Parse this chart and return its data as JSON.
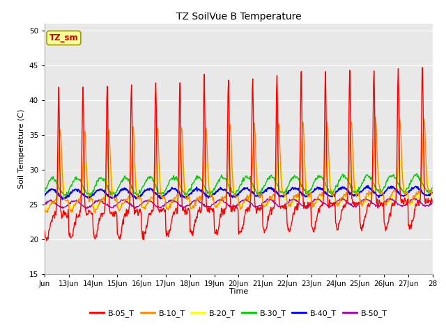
{
  "title": "TZ SoilVue B Temperature",
  "ylabel": "Soil Temperature (C)",
  "xlabel": "Time",
  "ylim": [
    15,
    51
  ],
  "yticks": [
    15,
    20,
    25,
    30,
    35,
    40,
    45,
    50
  ],
  "x_start": 12,
  "x_end": 28,
  "xtick_labels": [
    "Jun",
    "13Jun",
    "14Jun",
    "15Jun",
    "16Jun",
    "17Jun",
    "18Jun",
    "19Jun",
    "20Jun",
    "21Jun",
    "22Jun",
    "23Jun",
    "24Jun",
    "25Jun",
    "26Jun",
    "27Jun",
    "28"
  ],
  "xtick_positions": [
    12,
    13,
    14,
    15,
    16,
    17,
    18,
    19,
    20,
    21,
    22,
    23,
    24,
    25,
    26,
    27,
    28
  ],
  "series_colors": {
    "B-05_T": "#ff0000",
    "B-10_T": "#ff8800",
    "B-20_T": "#ffff00",
    "B-30_T": "#00cc00",
    "B-40_T": "#0000ff",
    "B-50_T": "#aa00aa"
  },
  "legend_label": "TZ_sm",
  "legend_box_color": "#ffff99",
  "legend_box_border": "#999900",
  "plot_bg_color": "#e8e8e8",
  "grid_color": "#ffffff",
  "title_fontsize": 10,
  "axis_fontsize": 8,
  "tick_fontsize": 7.5
}
